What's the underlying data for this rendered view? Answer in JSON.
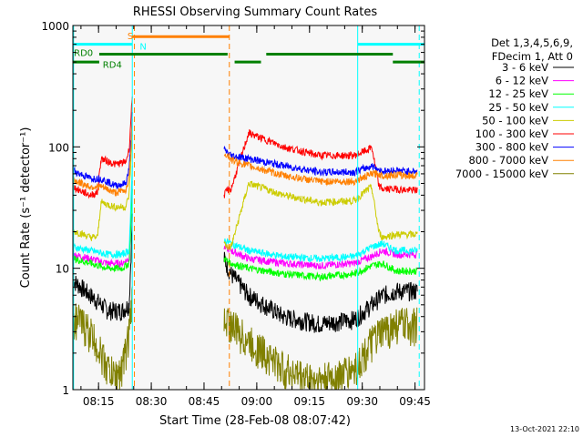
{
  "chart_data": {
    "type": "line",
    "title": "RHESSI Observing Summary Count Rates",
    "xlabel": "Start Time (28-Feb-08 08:07:42)",
    "ylabel": "Count Rate (s⁻¹ detector⁻¹)",
    "yscale": "log",
    "ylim": [
      1,
      1000
    ],
    "xlim_minutes": [
      0,
      100
    ],
    "x_ticks": [
      {
        "minutes": 7.3,
        "label": "08:15"
      },
      {
        "minutes": 22.3,
        "label": "08:30"
      },
      {
        "minutes": 37.3,
        "label": "08:45"
      },
      {
        "minutes": 52.3,
        "label": "09:00"
      },
      {
        "minutes": 67.3,
        "label": "09:15"
      },
      {
        "minutes": 82.3,
        "label": "09:30"
      },
      {
        "minutes": 97.3,
        "label": "09:45"
      }
    ],
    "y_ticks": [
      {
        "value": 1,
        "label": "1"
      },
      {
        "value": 10,
        "label": "10"
      },
      {
        "value": 100,
        "label": "100"
      },
      {
        "value": 1000,
        "label": "1000"
      }
    ],
    "legend_header": [
      "Det 1,3,4,5,6,9,",
      "FDecim 1, Att 0"
    ],
    "legend_position": "right",
    "series": [
      {
        "name": "3 - 6 keV",
        "color": "#000000",
        "seg1": {
          "x": [
            0,
            5,
            10,
            14,
            16,
            17
          ],
          "y": [
            8,
            6,
            4.5,
            4.5,
            5,
            30
          ]
        },
        "seg2": {
          "x": [
            43,
            45,
            50,
            60,
            70,
            80,
            85,
            88,
            92,
            95,
            98
          ],
          "y": [
            12,
            9,
            6,
            4,
            3.5,
            3.8,
            5,
            6,
            6.5,
            6.5,
            6.5
          ]
        }
      },
      {
        "name": "6 - 12 keV",
        "color": "#ff00ff",
        "seg1": {
          "x": [
            0,
            5,
            10,
            14,
            16,
            17
          ],
          "y": [
            13,
            12,
            11,
            11,
            12,
            60
          ]
        },
        "seg2": {
          "x": [
            43,
            45,
            50,
            60,
            70,
            80,
            85,
            88,
            92,
            95,
            98
          ],
          "y": [
            15,
            14,
            12,
            11,
            10.5,
            11,
            12.5,
            14,
            13,
            13,
            13
          ]
        }
      },
      {
        "name": "12 - 25 keV",
        "color": "#00ff00",
        "seg1": {
          "x": [
            0,
            5,
            10,
            14,
            16,
            17
          ],
          "y": [
            12,
            11,
            10,
            10,
            11,
            50
          ]
        },
        "seg2": {
          "x": [
            43,
            45,
            50,
            60,
            70,
            80,
            85,
            88,
            92,
            95,
            98
          ],
          "y": [
            12,
            11,
            10,
            9,
            8.5,
            9,
            10.5,
            11,
            9.5,
            9.5,
            9.5
          ]
        }
      },
      {
        "name": "25 - 50 keV",
        "color": "#00ffff",
        "seg1": {
          "x": [
            0,
            5,
            10,
            14,
            16,
            17
          ],
          "y": [
            15,
            14,
            13,
            13,
            14,
            80
          ]
        },
        "seg2": {
          "x": [
            43,
            45,
            50,
            60,
            70,
            80,
            85,
            88,
            92,
            95,
            98
          ],
          "y": [
            17,
            16,
            14,
            12.5,
            12,
            12.5,
            15,
            16,
            14,
            14,
            14
          ]
        }
      },
      {
        "name": "50 - 100 keV",
        "color": "#cccc00",
        "seg1": {
          "x": [
            0,
            1,
            5,
            7,
            8,
            12,
            15,
            16,
            17
          ],
          "y": [
            20,
            20,
            18,
            18,
            35,
            32,
            32,
            40,
            150
          ]
        },
        "seg2": {
          "x": [
            43,
            44,
            45,
            50,
            60,
            70,
            80,
            84,
            85,
            87,
            88,
            92,
            95,
            98
          ],
          "y": [
            16,
            15,
            15,
            50,
            40,
            35,
            36,
            45,
            46,
            20,
            18,
            19,
            19,
            19
          ]
        }
      },
      {
        "name": "100 - 300 keV",
        "color": "#ff0000",
        "seg1": {
          "x": [
            0,
            1,
            5,
            7,
            8,
            12,
            15,
            16,
            17
          ],
          "y": [
            48,
            45,
            40,
            42,
            80,
            72,
            75,
            95,
            300
          ]
        },
        "seg2": {
          "x": [
            43,
            44,
            45,
            50,
            60,
            70,
            80,
            84,
            85,
            87,
            88,
            92,
            95,
            98
          ],
          "y": [
            40,
            44,
            45,
            130,
            100,
            85,
            85,
            95,
            100,
            48,
            45,
            45,
            44,
            44
          ]
        }
      },
      {
        "name": "300 - 800 keV",
        "color": "#0000ff",
        "seg1": {
          "x": [
            0,
            1,
            5,
            7,
            8,
            12,
            15,
            16,
            17
          ],
          "y": [
            65,
            62,
            55,
            55,
            55,
            48,
            50,
            65,
            200
          ]
        },
        "seg2": {
          "x": [
            43,
            44,
            45,
            50,
            60,
            70,
            80,
            84,
            85,
            87,
            88,
            92,
            95,
            98
          ],
          "y": [
            95,
            90,
            85,
            80,
            70,
            62,
            62,
            68,
            70,
            65,
            63,
            64,
            63,
            63
          ]
        }
      },
      {
        "name": "800 - 7000 keV",
        "color": "#ff8000",
        "seg1": {
          "x": [
            0,
            1,
            5,
            7,
            8,
            12,
            15,
            16,
            17
          ],
          "y": [
            55,
            52,
            47,
            47,
            47,
            42,
            44,
            55,
            180
          ]
        },
        "seg2": {
          "x": [
            43,
            44,
            45,
            50,
            60,
            70,
            80,
            84,
            85,
            87,
            88,
            92,
            95,
            98
          ],
          "y": [
            90,
            85,
            78,
            70,
            58,
            52,
            52,
            58,
            60,
            60,
            58,
            59,
            58,
            58
          ]
        }
      },
      {
        "name": "7000 - 15000 keV",
        "color": "#808000",
        "seg1": {
          "x": [
            0,
            3,
            5,
            8,
            10,
            12,
            14,
            16,
            17
          ],
          "y": [
            4,
            3.5,
            3,
            2,
            1.5,
            1.3,
            1.5,
            3,
            6
          ]
        },
        "seg2": {
          "x": [
            43,
            45,
            50,
            55,
            60,
            65,
            70,
            75,
            80,
            83,
            85,
            88,
            92,
            95,
            98
          ],
          "y": [
            4,
            3.5,
            2.5,
            2,
            1.5,
            1.3,
            1.2,
            1.3,
            1.5,
            2,
            2.5,
            3,
            3.5,
            3.5,
            3.5
          ]
        }
      }
    ],
    "vertical_lines": [
      {
        "minutes": 17.5,
        "color": "#ff8000",
        "style": "dashed"
      },
      {
        "minutes": 16.9,
        "color": "#00ffff",
        "style": "solid"
      },
      {
        "minutes": 44.5,
        "color": "#ff8000",
        "style": "dashed"
      },
      {
        "minutes": 81.0,
        "color": "#00ffff",
        "style": "solid"
      },
      {
        "minutes": 98.5,
        "color": "#00ffff",
        "style": "dashed"
      },
      {
        "minutes": 0.2,
        "color": "#00ffff",
        "style": "solid"
      }
    ],
    "status_bars": [
      {
        "label": "S",
        "color": "#ff8000",
        "start": 16.9,
        "end": 44.5,
        "level": 810
      },
      {
        "label": "N",
        "color": "#00ffff",
        "start": 0,
        "end": 16.9,
        "level": 700
      },
      {
        "label": "N",
        "color": "#00ffff",
        "start": 81.0,
        "end": 100,
        "level": 700
      },
      {
        "label": "RD0",
        "color": "#008000",
        "start": 7.5,
        "end": 44.0,
        "level": 580
      },
      {
        "label": "RD0",
        "color": "#008000",
        "start": 55.0,
        "end": 91.0,
        "level": 580
      },
      {
        "label": "RD4",
        "color": "#008000",
        "start": 0,
        "end": 7.5,
        "level": 500
      },
      {
        "label": "RD4",
        "color": "#008000",
        "start": 46.0,
        "end": 53.5,
        "level": 500
      },
      {
        "label": "RD4",
        "color": "#008000",
        "start": 91.0,
        "end": 100,
        "level": 500
      }
    ],
    "status_labels": [
      {
        "text": "S",
        "color": "#ff8000",
        "minutes": 15.5,
        "level": 830
      },
      {
        "text": "N",
        "color": "#00ffff",
        "minutes": 19.0,
        "level": 680
      },
      {
        "text": "RD0",
        "color": "#008000",
        "minutes": 0.3,
        "level": 600
      },
      {
        "text": "RD4",
        "color": "#008000",
        "minutes": 8.5,
        "level": 480
      }
    ],
    "timestamp": "13-Oct-2021 22:10"
  }
}
